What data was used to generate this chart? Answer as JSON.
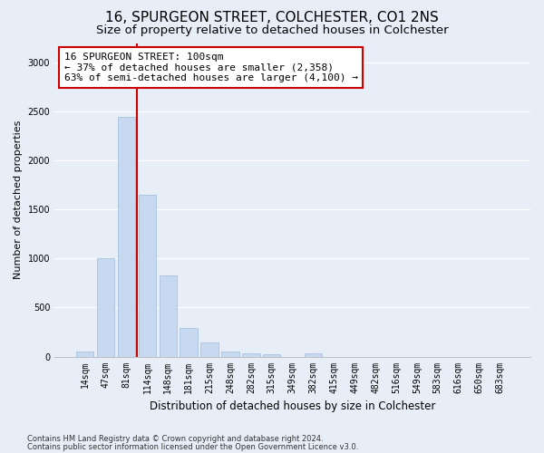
{
  "title": "16, SPURGEON STREET, COLCHESTER, CO1 2NS",
  "subtitle": "Size of property relative to detached houses in Colchester",
  "xlabel": "Distribution of detached houses by size in Colchester",
  "ylabel": "Number of detached properties",
  "bar_values": [
    55,
    1000,
    2450,
    1650,
    830,
    290,
    145,
    50,
    35,
    20,
    0,
    30,
    0,
    0,
    0,
    0,
    0,
    0,
    0,
    0,
    0
  ],
  "categories": [
    "14sqm",
    "47sqm",
    "81sqm",
    "114sqm",
    "148sqm",
    "181sqm",
    "215sqm",
    "248sqm",
    "282sqm",
    "315sqm",
    "349sqm",
    "382sqm",
    "415sqm",
    "449sqm",
    "482sqm",
    "516sqm",
    "549sqm",
    "583sqm",
    "616sqm",
    "650sqm",
    "683sqm"
  ],
  "bar_color": "#c6d9f0",
  "bar_edge_color": "#9fbcd8",
  "vline_color": "#cc0000",
  "annotation_text": "16 SPURGEON STREET: 100sqm\n← 37% of detached houses are smaller (2,358)\n63% of semi-detached houses are larger (4,100) →",
  "annotation_box_color": "#ffffff",
  "annotation_box_edge": "#cc0000",
  "ylim": [
    0,
    3200
  ],
  "yticks": [
    0,
    500,
    1000,
    1500,
    2000,
    2500,
    3000
  ],
  "footer1": "Contains HM Land Registry data © Crown copyright and database right 2024.",
  "footer2": "Contains public sector information licensed under the Open Government Licence v3.0.",
  "bg_color": "#e8eef8",
  "plot_bg_color": "#e8eef8",
  "grid_color": "#ffffff",
  "title_fontsize": 11,
  "subtitle_fontsize": 9.5,
  "xlabel_fontsize": 8.5,
  "ylabel_fontsize": 8,
  "tick_fontsize": 7,
  "annotation_fontsize": 8,
  "footer_fontsize": 6
}
